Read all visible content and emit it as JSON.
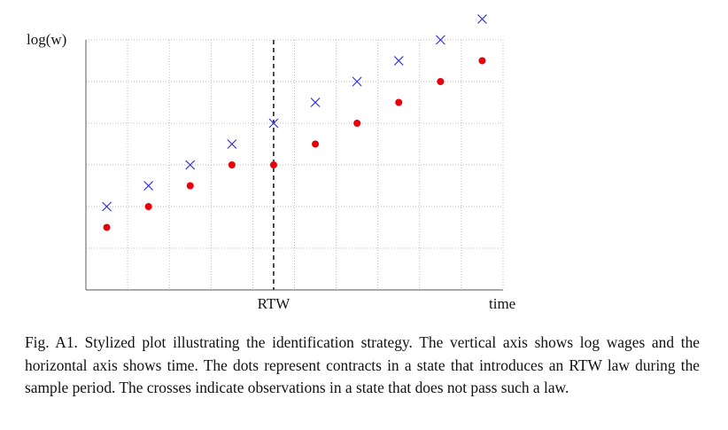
{
  "chart_data": {
    "type": "scatter",
    "ylabel": "log(w)",
    "xlabel": "time",
    "x": [
      0.5,
      1.5,
      2.5,
      3.5,
      4.5,
      5.5,
      6.5,
      7.5,
      8.5,
      9.5
    ],
    "series": [
      {
        "marker": "dot",
        "color": "#e8000b",
        "values": [
          1.5,
          2,
          2.5,
          3,
          3,
          3.5,
          4,
          4.5,
          5,
          5.5
        ]
      },
      {
        "marker": "cross",
        "color": "#2f2fe0",
        "values": [
          2,
          2.5,
          3,
          3.5,
          4,
          4.5,
          5,
          5.5,
          6,
          6.5
        ]
      }
    ],
    "xlim": [
      0,
      10
    ],
    "ylim": [
      0,
      6
    ],
    "xticks": [
      0,
      1,
      2,
      3,
      4,
      5,
      6,
      7,
      8,
      9,
      10
    ],
    "yticks": [
      0,
      1,
      2,
      3,
      4,
      5,
      6
    ],
    "grid": true,
    "annotation": {
      "text": "RTW",
      "x": 4.5
    },
    "caption": "Fig. A1. Stylized plot illustrating the identification strategy. The vertical axis shows log wages and the horizontal axis shows time. The dots represent contracts in a state that introduces an RTW law during the sample period. The crosses indicate observations in a state that does not pass such a law."
  }
}
